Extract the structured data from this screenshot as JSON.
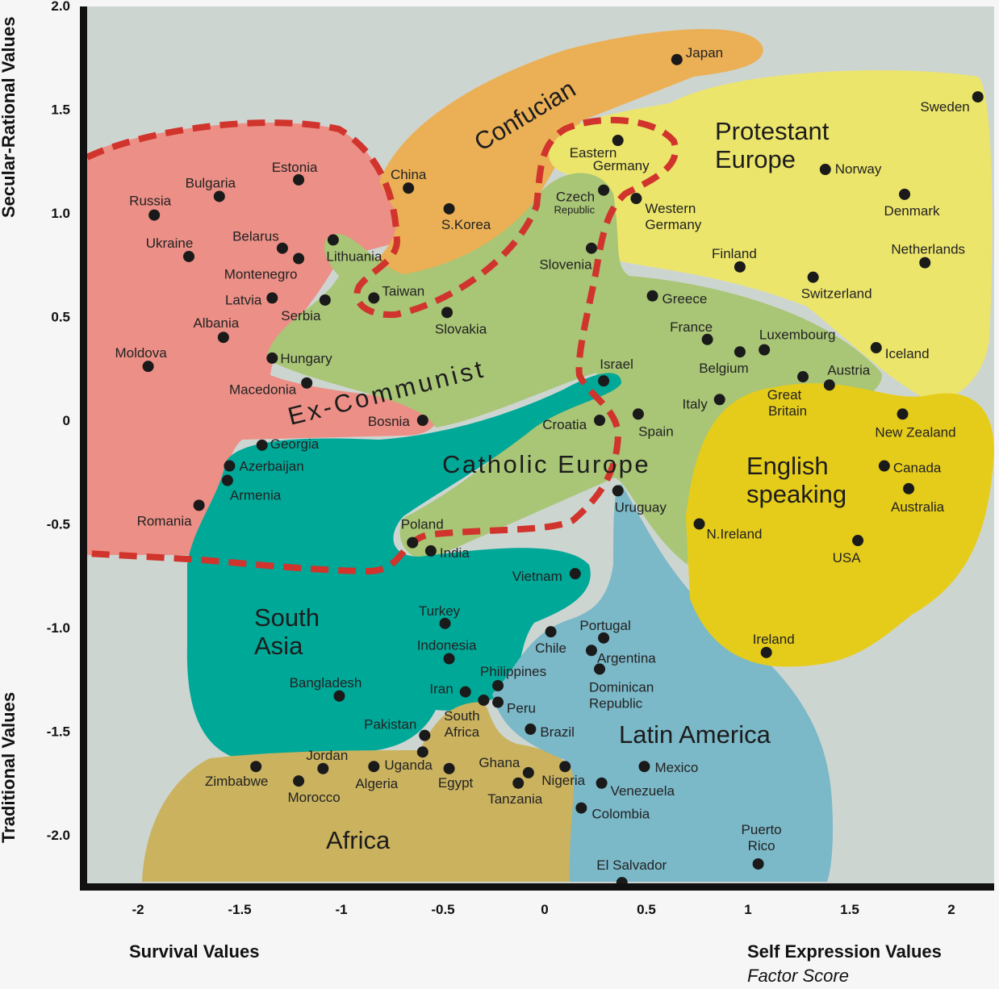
{
  "chart_data": {
    "type": "scatter",
    "title": "",
    "xlabel_left": "Survival Values",
    "xlabel_right": "Self Expression Values",
    "xlabel_sub": "Factor Score",
    "ylabel_top": "Secular-Rational Values",
    "ylabel_bottom": "Traditional Values",
    "xlim": [
      -2.28,
      2.21
    ],
    "ylim": [
      -2.25,
      2.0
    ],
    "x_ticks": [
      "-2",
      "-1.5",
      "-1",
      "-0.5",
      "0",
      "0.5",
      "1",
      "1.5",
      "2"
    ],
    "x_tick_values": [
      -2,
      -1.5,
      -1,
      -0.5,
      0,
      0.5,
      1,
      1.5,
      2
    ],
    "y_ticks": [
      "2.0",
      "1.5",
      "1.0",
      "0.5",
      "0",
      "-0.5",
      "-1.0",
      "-1.5",
      "-2.0"
    ],
    "y_tick_values": [
      2,
      1.5,
      1,
      0.5,
      0,
      -0.5,
      -1,
      -1.5,
      -2
    ],
    "grid": false,
    "regions": [
      {
        "name": "Ex-Communist",
        "color": "#ec8f86"
      },
      {
        "name": "Confucian",
        "color": "#ebb056"
      },
      {
        "name": "Protestant Europe",
        "color": "#ece56b"
      },
      {
        "name": "Catholic Europe",
        "color": "#a9c576"
      },
      {
        "name": "South Asia",
        "color": "#00a898"
      },
      {
        "name": "Africa",
        "color": "#cab25f"
      },
      {
        "name": "Latin America",
        "color": "#7bb8c8"
      },
      {
        "name": "English speaking",
        "color": "#e6cc1a"
      }
    ],
    "boundary_color": "#d0342c",
    "background_color": "#cdd5d1",
    "points": [
      {
        "name": "Japan",
        "x": 0.65,
        "y": 1.74
      },
      {
        "name": "Sweden",
        "x": 2.13,
        "y": 1.56
      },
      {
        "name": "Eastern Germany",
        "x": 0.36,
        "y": 1.35
      },
      {
        "name": "Norway",
        "x": 1.38,
        "y": 1.21
      },
      {
        "name": "Denmark",
        "x": 1.77,
        "y": 1.09
      },
      {
        "name": "China",
        "x": -0.67,
        "y": 1.12
      },
      {
        "name": "S.Korea",
        "x": -0.47,
        "y": 1.02
      },
      {
        "name": "Czech Republic",
        "x": 0.29,
        "y": 1.11
      },
      {
        "name": "Western Germany",
        "x": 0.45,
        "y": 1.07
      },
      {
        "name": "Estonia",
        "x": -1.21,
        "y": 1.16
      },
      {
        "name": "Bulgaria",
        "x": -1.6,
        "y": 1.08
      },
      {
        "name": "Russia",
        "x": -1.92,
        "y": 0.99
      },
      {
        "name": "Ukraine",
        "x": -1.75,
        "y": 0.79
      },
      {
        "name": "Belarus",
        "x": -1.29,
        "y": 0.83
      },
      {
        "name": "Montenegro",
        "x": -1.21,
        "y": 0.78
      },
      {
        "name": "Lithuania",
        "x": -1.04,
        "y": 0.87
      },
      {
        "name": "Slovenia",
        "x": 0.23,
        "y": 0.83
      },
      {
        "name": "Finland",
        "x": 0.96,
        "y": 0.74
      },
      {
        "name": "Netherlands",
        "x": 1.87,
        "y": 0.76
      },
      {
        "name": "Switzerland",
        "x": 1.32,
        "y": 0.69
      },
      {
        "name": "Latvia",
        "x": -1.34,
        "y": 0.59
      },
      {
        "name": "Serbia",
        "x": -1.08,
        "y": 0.58
      },
      {
        "name": "Taiwan",
        "x": -0.84,
        "y": 0.59
      },
      {
        "name": "Greece",
        "x": 0.53,
        "y": 0.6
      },
      {
        "name": "Slovakia",
        "x": -0.48,
        "y": 0.52
      },
      {
        "name": "Albania",
        "x": -1.58,
        "y": 0.4
      },
      {
        "name": "France",
        "x": 0.8,
        "y": 0.39
      },
      {
        "name": "Belgium",
        "x": 0.96,
        "y": 0.33
      },
      {
        "name": "Luxembourg",
        "x": 1.08,
        "y": 0.34
      },
      {
        "name": "Iceland",
        "x": 1.63,
        "y": 0.35
      },
      {
        "name": "Moldova",
        "x": -1.95,
        "y": 0.26
      },
      {
        "name": "Hungary",
        "x": -1.34,
        "y": 0.3
      },
      {
        "name": "Israel",
        "x": 0.29,
        "y": 0.19
      },
      {
        "name": "Macedonia",
        "x": -1.17,
        "y": 0.18
      },
      {
        "name": "Austria",
        "x": 1.4,
        "y": 0.17
      },
      {
        "name": "Great Britain",
        "x": 1.27,
        "y": 0.21
      },
      {
        "name": "Italy",
        "x": 0.86,
        "y": 0.1
      },
      {
        "name": "Bosnia",
        "x": -0.6,
        "y": 0.0
      },
      {
        "name": "Croatia",
        "x": 0.27,
        "y": 0.0
      },
      {
        "name": "Spain",
        "x": 0.46,
        "y": 0.03
      },
      {
        "name": "New Zealand",
        "x": 1.76,
        "y": 0.03
      },
      {
        "name": "Georgia",
        "x": -1.39,
        "y": -0.12
      },
      {
        "name": "Azerbaijan",
        "x": -1.55,
        "y": -0.22
      },
      {
        "name": "Armenia",
        "x": -1.56,
        "y": -0.29
      },
      {
        "name": "Canada",
        "x": 1.67,
        "y": -0.22
      },
      {
        "name": "Uruguay",
        "x": 0.36,
        "y": -0.34
      },
      {
        "name": "Australia",
        "x": 1.79,
        "y": -0.33
      },
      {
        "name": "Romania",
        "x": -1.7,
        "y": -0.41
      },
      {
        "name": "N.Ireland",
        "x": 0.76,
        "y": -0.5
      },
      {
        "name": "Poland",
        "x": -0.65,
        "y": -0.59
      },
      {
        "name": "India",
        "x": -0.56,
        "y": -0.63
      },
      {
        "name": "USA",
        "x": 1.54,
        "y": -0.58
      },
      {
        "name": "Vietnam",
        "x": 0.15,
        "y": -0.74
      },
      {
        "name": "Turkey",
        "x": -0.49,
        "y": -0.98
      },
      {
        "name": "Chile",
        "x": 0.03,
        "y": -1.02
      },
      {
        "name": "Portugal",
        "x": 0.29,
        "y": -1.05
      },
      {
        "name": "Argentina",
        "x": 0.23,
        "y": -1.11
      },
      {
        "name": "Ireland",
        "x": 1.09,
        "y": -1.12
      },
      {
        "name": "Indonesia",
        "x": -0.47,
        "y": -1.15
      },
      {
        "name": "Dominican Republic",
        "x": 0.27,
        "y": -1.2
      },
      {
        "name": "Philippines",
        "x": -0.23,
        "y": -1.28
      },
      {
        "name": "Iran",
        "x": -0.39,
        "y": -1.31
      },
      {
        "name": "Bangladesh",
        "x": -1.01,
        "y": -1.33
      },
      {
        "name": "South Africa",
        "x": -0.3,
        "y": -1.35
      },
      {
        "name": "Peru",
        "x": -0.23,
        "y": -1.36
      },
      {
        "name": "Brazil",
        "x": -0.07,
        "y": -1.49
      },
      {
        "name": "Pakistan",
        "x": -0.59,
        "y": -1.52
      },
      {
        "name": "Jordan",
        "x": -1.09,
        "y": -1.68
      },
      {
        "name": "Uganda",
        "x": -0.84,
        "y": -1.67
      },
      {
        "name": "Egypt",
        "x": -0.47,
        "y": -1.68
      },
      {
        "name": "Zimbabwe",
        "x": -1.42,
        "y": -1.67
      },
      {
        "name": "Algeria",
        "x": -0.6,
        "y": -1.6
      },
      {
        "name": "Morocco",
        "x": -1.21,
        "y": -1.74
      },
      {
        "name": "Ghana",
        "x": -0.08,
        "y": -1.7
      },
      {
        "name": "Tanzania",
        "x": -0.13,
        "y": -1.75
      },
      {
        "name": "Nigeria",
        "x": 0.1,
        "y": -1.67
      },
      {
        "name": "Mexico",
        "x": 0.49,
        "y": -1.67
      },
      {
        "name": "Venezuela",
        "x": 0.28,
        "y": -1.75
      },
      {
        "name": "Colombia",
        "x": 0.18,
        "y": -1.87
      },
      {
        "name": "Puerto Rico",
        "x": 1.05,
        "y": -2.14
      },
      {
        "name": "El Salvador",
        "x": 0.38,
        "y": -2.23
      }
    ]
  }
}
